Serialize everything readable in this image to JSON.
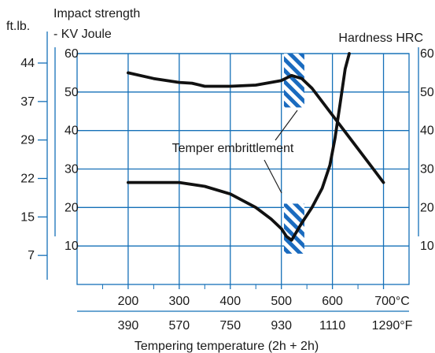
{
  "chart_data": {
    "type": "line",
    "xlabel": "Tempering temperature (2h + 2h)",
    "x_unit_c": "°C",
    "x_unit_f": "°F",
    "xlim": [
      100,
      750
    ],
    "x_ticks_c": [
      {
        "value": 200,
        "label": "200"
      },
      {
        "value": 300,
        "label": "300"
      },
      {
        "value": 400,
        "label": "400"
      },
      {
        "value": 500,
        "label": "500"
      },
      {
        "value": 600,
        "label": "600"
      },
      {
        "value": 700,
        "label": "700°C"
      }
    ],
    "x_ticks_f": [
      {
        "value": 200,
        "label": "390"
      },
      {
        "value": 300,
        "label": "570"
      },
      {
        "value": 400,
        "label": "750"
      },
      {
        "value": 500,
        "label": "930"
      },
      {
        "value": 600,
        "label": "1110"
      },
      {
        "value": 700,
        "label": "1290°F"
      }
    ],
    "ylim": [
      0,
      60
    ],
    "grid": true,
    "y_left_joule": {
      "title_line1": "Impact strength",
      "title_line2": "- KV Joule",
      "ticks": [
        10,
        20,
        30,
        40,
        50,
        60
      ]
    },
    "y_left_ftlb": {
      "title": "ft.lb.",
      "ticks": [
        {
          "value": 10,
          "label": "7"
        },
        {
          "value": 20,
          "label": "15"
        },
        {
          "value": 30,
          "label": "22"
        },
        {
          "value": 40,
          "label": "29"
        },
        {
          "value": 50,
          "label": "37"
        },
        {
          "value": 60,
          "label": "44"
        }
      ]
    },
    "y_right_hardness": {
      "title": "Hardness HRC",
      "ticks": [
        10,
        20,
        30,
        40,
        50,
        60
      ]
    },
    "series": [
      {
        "name": "",
        "axis": "hardness",
        "x": [
          200,
          250,
          300,
          325,
          350,
          400,
          450,
          500,
          520,
          540,
          560,
          600,
          640,
          680,
          700
        ],
        "y": [
          55,
          53.5,
          52.5,
          52.3,
          51.5,
          51.5,
          51.8,
          53,
          54.3,
          53.5,
          51,
          44,
          37,
          30,
          26.5
        ]
      },
      {
        "name": "",
        "axis": "impact",
        "x": [
          200,
          250,
          300,
          350,
          400,
          450,
          480,
          500,
          510,
          520,
          540,
          560,
          580,
          595,
          605,
          615,
          625,
          633
        ],
        "y": [
          26.5,
          26.5,
          26.5,
          25.5,
          23.5,
          20,
          17,
          14.5,
          12.5,
          11.5,
          16,
          20,
          25,
          31,
          38,
          47,
          56,
          60
        ]
      }
    ],
    "annotations": [
      {
        "text": "Temper embrittlement",
        "x": 500,
        "y": 35
      },
      {
        "type": "hatched-region",
        "x_range": [
          505,
          545
        ],
        "y_top": 60,
        "y_bottom": 46
      },
      {
        "type": "hatched-region",
        "x_range": [
          505,
          545
        ],
        "y_top": 21,
        "y_bottom": 8
      }
    ],
    "colors": {
      "grid": "#1570b8",
      "axis": "#1570b8",
      "curve": "#111111",
      "hatch": "#1a6bbf"
    }
  }
}
